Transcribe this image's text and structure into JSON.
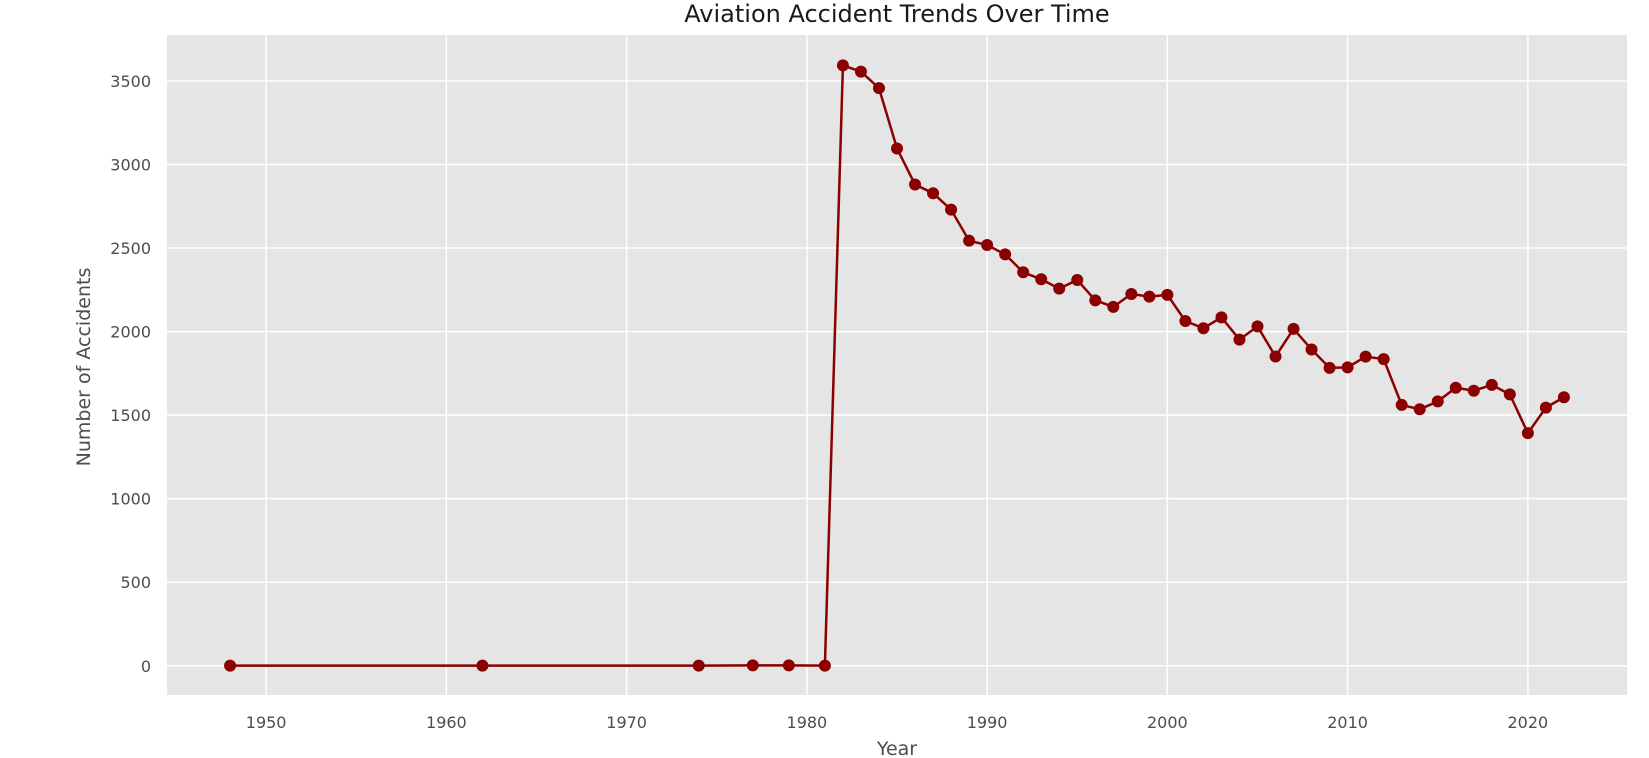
{
  "chart_data": {
    "type": "line",
    "title": "Aviation Accident Trends Over Time",
    "xlabel": "Year",
    "ylabel": "Number of Accidents",
    "xlim": [
      1944.5,
      2025.5
    ],
    "ylim": [
      -175,
      3775
    ],
    "xticks": [
      1950,
      1960,
      1970,
      1980,
      1990,
      2000,
      2010,
      2020
    ],
    "yticks": [
      0,
      500,
      1000,
      1500,
      2000,
      2500,
      3000,
      3500
    ],
    "grid": true,
    "legend": "none",
    "colors": {
      "line": "#8b0000",
      "marker": "#8b0000",
      "plot_bg": "#e5e5e5",
      "grid": "#ffffff"
    },
    "series": [
      {
        "x": [
          1948,
          1962,
          1974,
          1977,
          1979,
          1981,
          1982,
          1983,
          1984,
          1985,
          1986,
          1987,
          1988,
          1989,
          1990,
          1991,
          1992,
          1993,
          1994,
          1995,
          1996,
          1997,
          1998,
          1999,
          2000,
          2001,
          2002,
          2003,
          2004,
          2005,
          2006,
          2007,
          2008,
          2009,
          2010,
          2011,
          2012,
          2013,
          2014,
          2015,
          2016,
          2017,
          2018,
          2019,
          2020,
          2021,
          2022
        ],
        "values": [
          1,
          1,
          1,
          2,
          2,
          1,
          3593,
          3556,
          3457,
          3096,
          2880,
          2828,
          2730,
          2544,
          2518,
          2462,
          2355,
          2313,
          2257,
          2309,
          2187,
          2148,
          2225,
          2209,
          2220,
          2063,
          2020,
          2085,
          1952,
          2031,
          1851,
          2016,
          1893,
          1783,
          1786,
          1850,
          1835,
          1561,
          1535,
          1582,
          1664,
          1646,
          1681,
          1624,
          1392,
          1545,
          1607
        ]
      }
    ]
  }
}
